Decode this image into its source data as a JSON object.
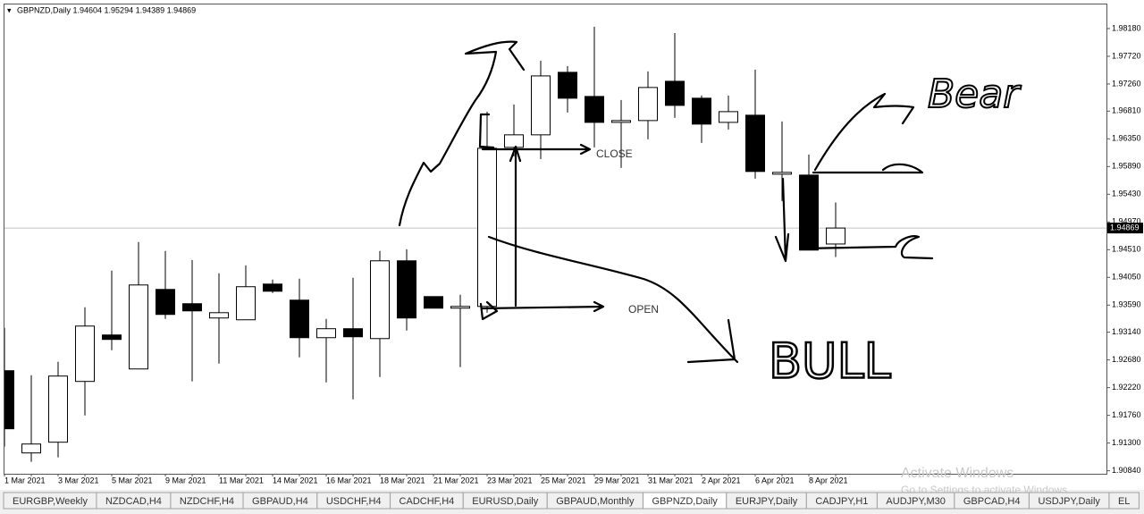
{
  "chart_data": {
    "type": "candlestick",
    "title": "GBPNZD,Daily  1.94604 1.95294 1.94389 1.94869",
    "categories": [
      "1 Mar 2021",
      null,
      "3 Mar 2021",
      null,
      "5 Mar 2021",
      null,
      "9 Mar 2021",
      null,
      "11 Mar 2021",
      null,
      "14 Mar 2021",
      null,
      "16 Mar 2021",
      null,
      "18 Mar 2021",
      null,
      "21 Mar 2021",
      null,
      "23 Mar 2021",
      null,
      "25 Mar 2021",
      null,
      "29 Mar 2021",
      null,
      "31 Mar 2021",
      null,
      "2 Apr 2021",
      null,
      "6 Apr 2021",
      null,
      "8 Apr 2021",
      null
    ],
    "open": [
      1.92501,
      1.91136,
      1.91314,
      1.92323,
      1.93094,
      1.9253,
      1.9385,
      1.93613,
      1.93376,
      1.93346,
      1.93939,
      1.93672,
      1.93049,
      1.93198,
      1.93034,
      1.94325,
      1.93731,
      1.93539,
      1.93568,
      1.96208,
      1.96416,
      1.97454,
      1.97053,
      1.96623,
      1.96653,
      1.97305,
      1.97024,
      1.96623,
      1.96742,
      1.95763,
      1.95748,
      1.94604
    ],
    "high": [
      1.93212,
      1.92426,
      1.92649,
      1.93553,
      1.94162,
      1.94636,
      1.94488,
      1.94339,
      1.94117,
      1.9425,
      1.94013,
      1.94028,
      1.93361,
      1.94043,
      1.94488,
      1.94517,
      1.93731,
      1.93761,
      1.96801,
      1.9692,
      1.97647,
      1.97558,
      1.9821,
      1.96994,
      1.97469,
      1.98106,
      1.97068,
      1.97068,
      1.97498,
      1.96638,
      1.96089,
      1.95294
    ],
    "low": [
      1.9124,
      1.90988,
      1.91062,
      1.91759,
      1.92842,
      1.9253,
      1.93361,
      1.92323,
      1.92619,
      1.93346,
      1.93791,
      1.92723,
      1.92308,
      1.92026,
      1.92397,
      1.93168,
      1.93539,
      1.9256,
      1.93464,
      1.9606,
      1.96015,
      1.96786,
      1.96208,
      1.95867,
      1.96342,
      1.96697,
      1.96282,
      1.96505,
      1.95689,
      1.95318,
      1.94503,
      1.94389
    ],
    "close": [
      1.91537,
      1.91284,
      1.92412,
      1.93242,
      1.9302,
      1.93924,
      1.93435,
      1.93494,
      1.93464,
      1.93895,
      1.9382,
      1.93049,
      1.93198,
      1.93064,
      1.94325,
      1.93376,
      1.93539,
      1.93568,
      1.96193,
      1.96416,
      1.97394,
      1.97024,
      1.96623,
      1.96653,
      1.97202,
      1.96905,
      1.96594,
      1.96801,
      1.95808,
      1.95793,
      1.94503,
      1.94869
    ],
    "up_color": "#ffffff",
    "down_color": "#000000",
    "ylim": [
      1.9079,
      1.9858
    ],
    "yticks": [
      {
        "value": 1.9818,
        "label": "1.98180"
      },
      {
        "value": 1.9772,
        "label": "1.97720"
      },
      {
        "value": 1.9726,
        "label": "1.97260"
      },
      {
        "value": 1.9681,
        "label": "1.96810"
      },
      {
        "value": 1.9635,
        "label": "1.96350"
      },
      {
        "value": 1.9589,
        "label": "1.95890"
      },
      {
        "value": 1.9543,
        "label": "1.95430"
      },
      {
        "value": 1.9497,
        "label": "1.94970"
      },
      {
        "value": 1.9451,
        "label": "1.94510"
      },
      {
        "value": 1.9405,
        "label": "1.94050"
      },
      {
        "value": 1.9359,
        "label": "1.93590"
      },
      {
        "value": 1.9314,
        "label": "1.93140"
      },
      {
        "value": 1.9268,
        "label": "1.92680"
      },
      {
        "value": 1.9222,
        "label": "1.92220"
      },
      {
        "value": 1.9176,
        "label": "1.91760"
      },
      {
        "value": 1.913,
        "label": "1.91300"
      },
      {
        "value": 1.9084,
        "label": "1.90840"
      }
    ],
    "price_line": 1.94869,
    "grid": false,
    "annotations": {
      "close": "CLOSE",
      "open": "OPEN",
      "bear": "Bear",
      "bull": "BULL"
    }
  },
  "tabs": [
    "EURGBP,Weekly",
    "NZDCAD,H4",
    "NZDCHF,H4",
    "GBPAUD,H4",
    "USDCHF,H4",
    "CADCHF,H4",
    "EURUSD,Daily",
    "GBPAUD,Monthly",
    "GBPNZD,Daily",
    "EURJPY,Daily",
    "CADJPY,H1",
    "AUDJPY,M30",
    "GBPCAD,H4",
    "USDJPY,Daily",
    "EL"
  ],
  "active_tab": 8,
  "watermark": {
    "title": "Activate Windows",
    "subtitle": "Go to Settings to activate Windows."
  }
}
